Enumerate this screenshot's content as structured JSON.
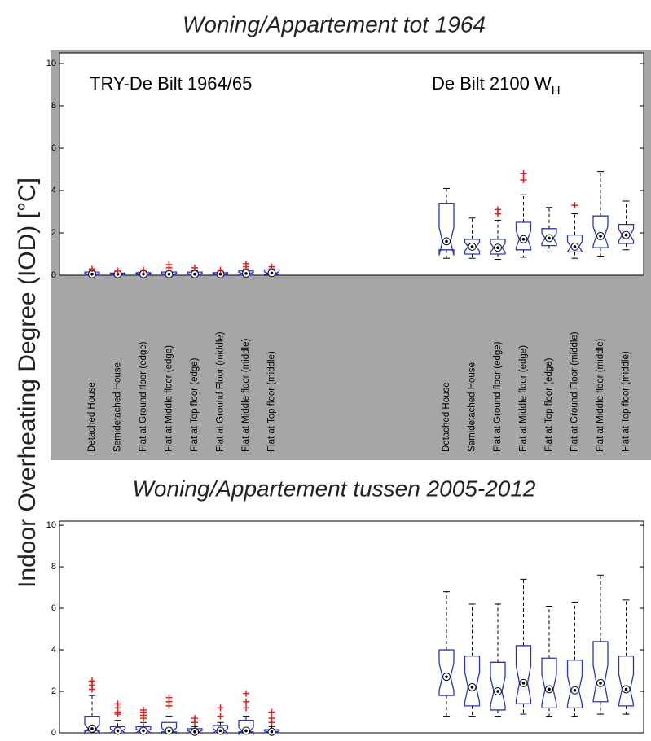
{
  "chart_data": [
    {
      "type": "box",
      "title": "Woning/Appartement tot 1964",
      "ylabel": "Indoor Overheating Degree (IOD) [°C]",
      "ylim": [
        0,
        10.5
      ],
      "yticks": [
        0,
        2,
        4,
        6,
        8,
        10
      ],
      "box_color": "#2b35b8",
      "outlier_color": "#e02020",
      "groups": [
        {
          "name": "TRY-De Bilt 1964/65",
          "categories": [
            "Detached House",
            "Semidetached House",
            "Flat at Ground floor (edge)",
            "Flat at Middle floor (edge)",
            "Flat at Top floor (edge)",
            "Flat at Ground Floor (middle)",
            "Flat at Middle floor (middle)",
            "Flat at Top floor (middle)"
          ],
          "boxes": [
            {
              "min": 0,
              "q1": 0,
              "median": 0.05,
              "q3": 0.15,
              "max": 0.2,
              "outliers": [
                0.3
              ]
            },
            {
              "min": 0,
              "q1": 0,
              "median": 0.05,
              "q3": 0.1,
              "max": 0.15,
              "outliers": [
                0.2
              ]
            },
            {
              "min": 0,
              "q1": 0,
              "median": 0.05,
              "q3": 0.12,
              "max": 0.18,
              "outliers": [
                0.25
              ]
            },
            {
              "min": 0,
              "q1": 0,
              "median": 0.05,
              "q3": 0.15,
              "max": 0.25,
              "outliers": [
                0.35,
                0.5
              ]
            },
            {
              "min": 0,
              "q1": 0,
              "median": 0.05,
              "q3": 0.15,
              "max": 0.22,
              "outliers": [
                0.35
              ]
            },
            {
              "min": 0,
              "q1": 0,
              "median": 0.05,
              "q3": 0.12,
              "max": 0.18,
              "outliers": [
                0.25
              ]
            },
            {
              "min": 0,
              "q1": 0,
              "median": 0.08,
              "q3": 0.2,
              "max": 0.3,
              "outliers": [
                0.4,
                0.55
              ]
            },
            {
              "min": 0,
              "q1": 0.05,
              "median": 0.1,
              "q3": 0.25,
              "max": 0.3,
              "outliers": [
                0.4
              ]
            }
          ]
        },
        {
          "name": "De Bilt 2100 W",
          "subscript": "H",
          "categories": [
            "Detached House",
            "Semidetached House",
            "Flat at Ground floor (edge)",
            "Flat at Middle floor (edge)",
            "Flat at Top floor (edge)",
            "Flat at Ground Floor (middle)",
            "Flat at Middle floor (middle)",
            "Flat at Top floor (middle)"
          ],
          "boxes": [
            {
              "min": 0.8,
              "q1": 1.2,
              "median": 1.6,
              "q3": 3.4,
              "max": 4.1,
              "outliers": []
            },
            {
              "min": 0.8,
              "q1": 1.0,
              "median": 1.35,
              "q3": 1.7,
              "max": 2.7,
              "outliers": []
            },
            {
              "min": 0.75,
              "q1": 1.0,
              "median": 1.3,
              "q3": 1.7,
              "max": 2.6,
              "outliers": [
                2.9,
                3.1
              ]
            },
            {
              "min": 0.85,
              "q1": 1.2,
              "median": 1.7,
              "q3": 2.5,
              "max": 3.8,
              "outliers": [
                4.5,
                4.8
              ]
            },
            {
              "min": 1.1,
              "q1": 1.4,
              "median": 1.75,
              "q3": 2.2,
              "max": 3.2,
              "outliers": []
            },
            {
              "min": 0.8,
              "q1": 1.1,
              "median": 1.35,
              "q3": 1.9,
              "max": 2.9,
              "outliers": [
                3.3
              ]
            },
            {
              "min": 0.9,
              "q1": 1.3,
              "median": 1.85,
              "q3": 2.8,
              "max": 4.9,
              "outliers": []
            },
            {
              "min": 1.2,
              "q1": 1.5,
              "median": 1.9,
              "q3": 2.4,
              "max": 3.5,
              "outliers": []
            }
          ]
        }
      ]
    },
    {
      "type": "box",
      "title": "Woning/Appartement tussen 2005-2012",
      "ylim": [
        0,
        10.2
      ],
      "yticks": [
        0,
        2,
        4,
        6,
        8,
        10
      ],
      "box_color": "#2b35b8",
      "outlier_color": "#e02020",
      "groups": [
        {
          "boxes": [
            {
              "min": 0,
              "q1": 0.1,
              "median": 0.2,
              "q3": 0.8,
              "max": 1.8,
              "outliers": [
                2.1,
                2.3,
                2.5
              ]
            },
            {
              "min": 0,
              "q1": 0,
              "median": 0.1,
              "q3": 0.3,
              "max": 0.6,
              "outliers": [
                0.9,
                1.0,
                1.2,
                1.4
              ]
            },
            {
              "min": 0,
              "q1": 0,
              "median": 0.1,
              "q3": 0.3,
              "max": 0.5,
              "outliers": [
                0.7,
                0.85,
                1.0,
                1.1
              ]
            },
            {
              "min": 0,
              "q1": 0.05,
              "median": 0.1,
              "q3": 0.5,
              "max": 0.8,
              "outliers": [
                1.3,
                1.5,
                1.7
              ]
            },
            {
              "min": 0,
              "q1": 0,
              "median": 0.05,
              "q3": 0.2,
              "max": 0.3,
              "outliers": [
                0.5,
                0.7
              ]
            },
            {
              "min": 0,
              "q1": 0,
              "median": 0.1,
              "q3": 0.35,
              "max": 0.5,
              "outliers": [
                0.8,
                1.2
              ]
            },
            {
              "min": 0,
              "q1": 0.05,
              "median": 0.1,
              "q3": 0.6,
              "max": 0.8,
              "outliers": [
                1.2,
                1.5,
                1.9
              ]
            },
            {
              "min": 0,
              "q1": 0,
              "median": 0.05,
              "q3": 0.15,
              "max": 0.3,
              "outliers": [
                0.5,
                0.7,
                1.0
              ]
            }
          ]
        },
        {
          "boxes": [
            {
              "min": 0.8,
              "q1": 1.8,
              "median": 2.7,
              "q3": 4.0,
              "max": 6.8,
              "outliers": []
            },
            {
              "min": 0.8,
              "q1": 1.3,
              "median": 2.2,
              "q3": 3.7,
              "max": 6.2,
              "outliers": []
            },
            {
              "min": 0.8,
              "q1": 1.1,
              "median": 2.0,
              "q3": 3.4,
              "max": 6.2,
              "outliers": []
            },
            {
              "min": 0.9,
              "q1": 1.4,
              "median": 2.4,
              "q3": 4.2,
              "max": 7.4,
              "outliers": []
            },
            {
              "min": 0.8,
              "q1": 1.2,
              "median": 2.1,
              "q3": 3.6,
              "max": 6.1,
              "outliers": []
            },
            {
              "min": 0.8,
              "q1": 1.2,
              "median": 2.05,
              "q3": 3.5,
              "max": 6.3,
              "outliers": []
            },
            {
              "min": 0.9,
              "q1": 1.5,
              "median": 2.4,
              "q3": 4.4,
              "max": 7.6,
              "outliers": []
            },
            {
              "min": 0.9,
              "q1": 1.3,
              "median": 2.1,
              "q3": 3.7,
              "max": 6.4,
              "outliers": []
            }
          ]
        }
      ]
    }
  ]
}
